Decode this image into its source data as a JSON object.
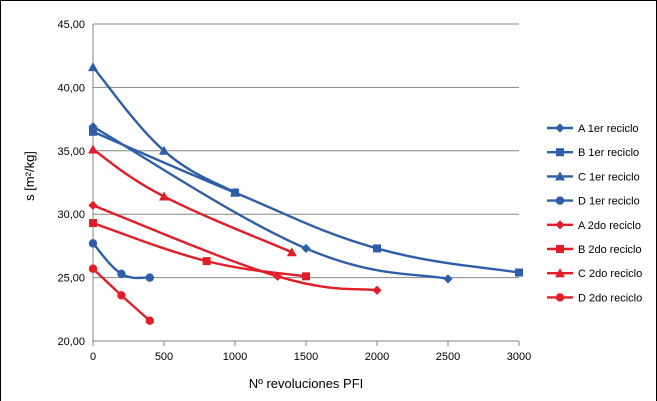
{
  "chart_data": {
    "type": "line",
    "title": "",
    "xlabel": "Nº revoluciones PFI",
    "ylabel": "s [m²/kg]",
    "xlim": [
      0,
      3000
    ],
    "ylim": [
      20,
      45
    ],
    "xticks": [
      0,
      500,
      1000,
      1500,
      2000,
      2500,
      3000
    ],
    "yticks": [
      20,
      25,
      30,
      35,
      40,
      45
    ],
    "xtick_labels": [
      "0",
      "500",
      "1000",
      "1500",
      "2000",
      "2500",
      "3000"
    ],
    "ytick_labels": [
      "20,00",
      "25,00",
      "30,00",
      "35,00",
      "40,00",
      "45,00"
    ],
    "grid": "horizontal",
    "legend_position": "right",
    "series": [
      {
        "name": "A 1er reciclo",
        "color": "#2f5ea8",
        "marker": "diamond",
        "x": [
          0,
          1500,
          2500
        ],
        "y": [
          36.9,
          27.3,
          24.9
        ]
      },
      {
        "name": "B 1er reciclo",
        "color": "#2f5ea8",
        "marker": "square",
        "x": [
          0,
          1000,
          2000,
          3000
        ],
        "y": [
          36.5,
          31.7,
          27.3,
          25.4
        ]
      },
      {
        "name": "C 1er reciclo",
        "color": "#2f5ea8",
        "marker": "triangle",
        "x": [
          0,
          500,
          1000
        ],
        "y": [
          41.6,
          35.0,
          31.7
        ]
      },
      {
        "name": "D 1er reciclo",
        "color": "#2f5ea8",
        "marker": "circle",
        "x": [
          0,
          200,
          400
        ],
        "y": [
          27.7,
          25.3,
          25.0
        ]
      },
      {
        "name": "A 2do reciclo",
        "color": "#e11d27",
        "marker": "diamond",
        "x": [
          0,
          1300,
          2000
        ],
        "y": [
          30.7,
          25.1,
          24.0
        ]
      },
      {
        "name": "B 2do reciclo",
        "color": "#e11d27",
        "marker": "square",
        "x": [
          0,
          800,
          1500
        ],
        "y": [
          29.3,
          26.3,
          25.1
        ]
      },
      {
        "name": "C 2do reciclo",
        "color": "#e11d27",
        "marker": "triangle",
        "x": [
          0,
          500,
          1400
        ],
        "y": [
          35.1,
          31.4,
          27.0
        ]
      },
      {
        "name": "D 2do reciclo",
        "color": "#e11d27",
        "marker": "circle",
        "x": [
          0,
          200,
          400
        ],
        "y": [
          25.7,
          23.6,
          21.6
        ]
      }
    ]
  }
}
